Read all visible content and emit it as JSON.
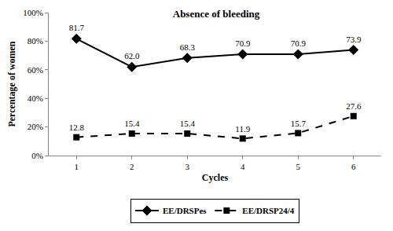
{
  "chart_data": {
    "type": "line",
    "title": "Absence of bleeding",
    "x_label": "Cycles",
    "y_label": "Percentage of women",
    "x": [
      1,
      2,
      3,
      4,
      5,
      6
    ],
    "xlim": [
      0.5,
      6.5
    ],
    "xticks": [
      1,
      2,
      3,
      4,
      5,
      6
    ],
    "ylim": [
      0,
      100
    ],
    "yticks": [
      {
        "value": 0,
        "label": "0%"
      },
      {
        "value": 20,
        "label": "20%"
      },
      {
        "value": 40,
        "label": "40%"
      },
      {
        "value": 60,
        "label": "60%"
      },
      {
        "value": 80,
        "label": "80%"
      },
      {
        "value": 100,
        "label": "100%"
      }
    ],
    "grid": false,
    "legend": "bottom",
    "data_labels": true,
    "series": [
      {
        "name": "EE/DRSPes",
        "color": "#000000",
        "marker": "diamond",
        "line_style": "solid",
        "values": [
          81.7,
          62.0,
          68.3,
          70.9,
          70.9,
          73.9
        ],
        "value_labels": [
          "81.7",
          "62.0",
          "68.3",
          "70.9",
          "70.9",
          "73.9"
        ]
      },
      {
        "name": "EE/DRSP24/4",
        "color": "#000000",
        "marker": "square",
        "line_style": "dash",
        "values": [
          12.8,
          15.4,
          15.4,
          11.9,
          15.7,
          27.6
        ],
        "value_labels": [
          "12.8",
          "15.4",
          "15.4",
          "11.9",
          "15.7",
          "27.6"
        ]
      }
    ]
  }
}
